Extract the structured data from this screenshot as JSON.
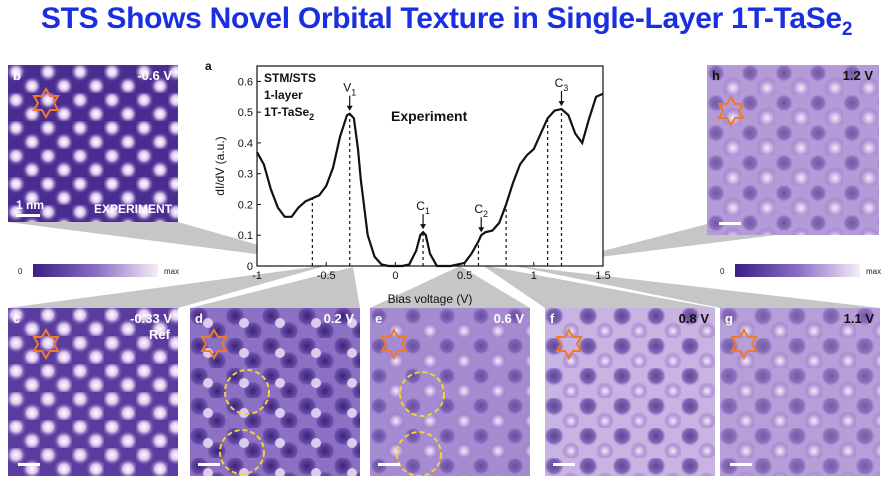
{
  "title": {
    "main": "STS Shows Novel Orbital Texture in Single-Layer 1T-TaSe",
    "sub": "2"
  },
  "panels": {
    "b": {
      "label": "b",
      "voltage": "-0.6 V",
      "scale": "1 nm",
      "tag": "EXPERIMENT"
    },
    "h": {
      "label": "h",
      "voltage": "1.2 V"
    },
    "c": {
      "label": "c",
      "voltage": "-0.33 V",
      "ref": "Ref"
    },
    "d": {
      "label": "d",
      "voltage": "0.2 V"
    },
    "e": {
      "label": "e",
      "voltage": "0.6 V"
    },
    "f": {
      "label": "f",
      "voltage": "0.8 V"
    },
    "g": {
      "label": "g",
      "voltage": "1.1 V"
    }
  },
  "colorbars": {
    "left": {
      "min": "0",
      "max": "max"
    },
    "right": {
      "min": "0",
      "max": "max"
    }
  },
  "plot": {
    "label": "a",
    "info_line1": "STM/STS",
    "info_line2": "1-layer",
    "info_line3": "1T-TaSe",
    "info_sub": "2",
    "experiment": "Experiment",
    "ylabel": "dI/dV (a.u.)",
    "xlabel": "Bias voltage (V)"
  },
  "chart_data": {
    "type": "line",
    "xlabel": "Bias voltage (V)",
    "ylabel": "dI/dV (a.u.)",
    "xlim": [
      -1,
      1.5
    ],
    "ylim": [
      0,
      0.65
    ],
    "xticks": [
      -1,
      -0.5,
      0,
      0.5,
      1,
      1.5
    ],
    "xtick_labels": [
      "-1",
      "-0.5",
      "0",
      "0.5",
      "1",
      "1.5"
    ],
    "yticks": [
      0,
      0.1,
      0.2,
      0.3,
      0.4,
      0.5,
      0.6
    ],
    "ytick_labels": [
      "0",
      "0.1",
      "0.2",
      "0.3",
      "0.4",
      "0.5",
      "0.6"
    ],
    "x": [
      -1.0,
      -0.95,
      -0.9,
      -0.85,
      -0.8,
      -0.75,
      -0.7,
      -0.65,
      -0.6,
      -0.55,
      -0.5,
      -0.45,
      -0.4,
      -0.35,
      -0.33,
      -0.3,
      -0.27,
      -0.25,
      -0.2,
      -0.15,
      -0.1,
      -0.05,
      0.0,
      0.05,
      0.1,
      0.15,
      0.18,
      0.2,
      0.22,
      0.25,
      0.3,
      0.35,
      0.4,
      0.45,
      0.5,
      0.55,
      0.6,
      0.62,
      0.65,
      0.7,
      0.75,
      0.8,
      0.85,
      0.9,
      0.95,
      1.0,
      1.05,
      1.1,
      1.15,
      1.2,
      1.25,
      1.3,
      1.35,
      1.4,
      1.45,
      1.5
    ],
    "series": [
      {
        "values": [
          0.37,
          0.33,
          0.25,
          0.19,
          0.16,
          0.16,
          0.19,
          0.21,
          0.22,
          0.23,
          0.26,
          0.32,
          0.42,
          0.49,
          0.495,
          0.48,
          0.38,
          0.28,
          0.1,
          0.03,
          0.005,
          0.0,
          0.0,
          0.0,
          0.005,
          0.05,
          0.1,
          0.11,
          0.1,
          0.04,
          0.0,
          0.0,
          0.0,
          0.005,
          0.01,
          0.04,
          0.08,
          0.1,
          0.11,
          0.115,
          0.14,
          0.2,
          0.27,
          0.33,
          0.36,
          0.38,
          0.43,
          0.48,
          0.505,
          0.51,
          0.49,
          0.43,
          0.4,
          0.48,
          0.55,
          0.56
        ]
      }
    ],
    "markers": [
      {
        "label": "V1",
        "x": -0.33
      },
      {
        "label": "C1",
        "x": 0.2
      },
      {
        "label": "C2",
        "x": 0.62
      },
      {
        "label": "C3",
        "x": 1.2
      }
    ],
    "dashed_lines_x": [
      -0.6,
      -0.33,
      0.2,
      0.6,
      0.8,
      1.1,
      1.2
    ],
    "grid": false
  },
  "colors": {
    "title": "#1a2fe0",
    "colormap_dark": "#3b1f82",
    "colormap_light": "#f1e6f5",
    "fan": "#bdbdbd",
    "star": "#ee7a2e",
    "circle": "#f2d23a"
  }
}
